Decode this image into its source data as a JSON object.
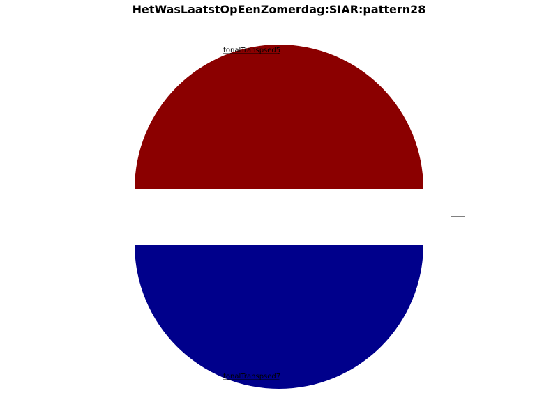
{
  "chart_data": {
    "type": "pie",
    "title": "HetWasLaatstOpEenZomerdag:SIAR:pattern28",
    "slices": [
      {
        "label": "tonalTranspsed5",
        "value": 1,
        "color": "#8b0000",
        "exploded": true
      },
      {
        "label": "",
        "value": 0,
        "color": "#ffffff",
        "exploded": false
      },
      {
        "label": "tonalTranspsed7",
        "value": 1,
        "color": "#00008b",
        "exploded": true
      }
    ],
    "legend": "none"
  }
}
